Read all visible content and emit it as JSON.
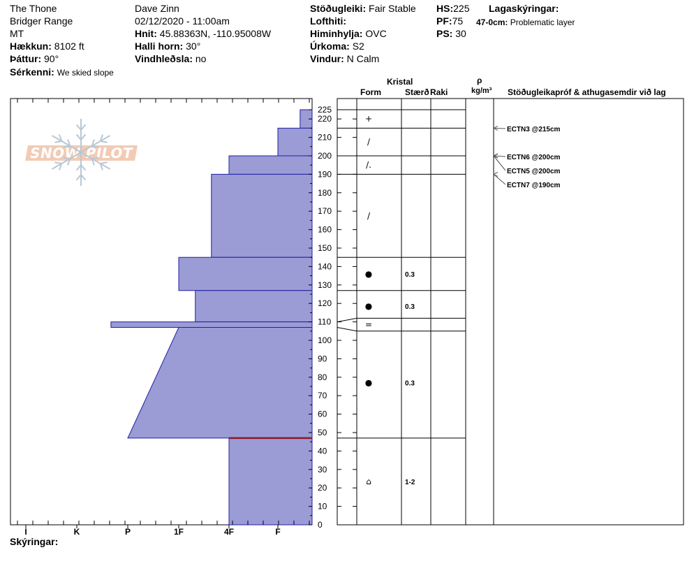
{
  "header": {
    "location": "The Thone",
    "range": "Bridger Range",
    "state": "MT",
    "elevation_label": "Hækkun:",
    "elevation": "8102 ft",
    "aspect_label": "Þáttur:",
    "aspect": "90°",
    "features_label": "Sérkenni:",
    "features": "We skied slope",
    "observer": "Dave Zinn",
    "datetime": "02/12/2020 - 11:00am",
    "coords_label": "Hnit:",
    "coords": "45.88363N, -110.95008W",
    "slope_label": "Halli horn:",
    "slope": "30°",
    "wind_loading_label": "Vindhleðsla:",
    "wind_loading": "no",
    "stability_label": "Stöðugleiki:",
    "stability": "Fair Stable",
    "air_temp_label": "Lofthiti:",
    "air_temp": "",
    "sky_label": "Himinhylja:",
    "sky": "OVC",
    "precip_label": "Úrkoma:",
    "precip": "S2",
    "wind_label": "Vindur:",
    "wind": "N Calm",
    "hs_label": "HS:",
    "hs": "225",
    "pf_label": "PF:",
    "pf": "75",
    "ps_label": "PS:",
    "ps": "30",
    "layer_notes_label": "Lagaskýringar:",
    "layer_note_range": "47-0cm:",
    "layer_note_text": "Problematic layer"
  },
  "logo_text": "SNOW PILOT",
  "legend_label": "Skýringar:",
  "columns": {
    "kristal": "Kristal",
    "form": "Form",
    "size": "Stærð",
    "moisture": "Raki",
    "rho": "ρ",
    "density_unit": "kg/m³",
    "tests": "Stöðugleikapróf & athugasemdir við lag"
  },
  "chart_data": {
    "type": "bar",
    "x_categories": [
      "I",
      "K",
      "P",
      "1F",
      "4F",
      "F"
    ],
    "y_ticks": [
      0,
      10,
      20,
      30,
      40,
      50,
      60,
      70,
      80,
      90,
      100,
      110,
      120,
      130,
      140,
      150,
      160,
      170,
      180,
      190,
      200,
      210,
      220,
      225
    ],
    "ylim": [
      0,
      225
    ],
    "layers": [
      {
        "top": 225,
        "bottom": 215,
        "hardness_top": 5.65,
        "hardness_bottom": 5.65,
        "form": "+",
        "size": ""
      },
      {
        "top": 215,
        "bottom": 200,
        "hardness_top": 5.0,
        "hardness_bottom": 5.0,
        "form": "/",
        "size": ""
      },
      {
        "top": 200,
        "bottom": 190,
        "hardness_top": 4.0,
        "hardness_bottom": 4.0,
        "form": "/.",
        "size": ""
      },
      {
        "top": 190,
        "bottom": 145,
        "hardness_top": 3.65,
        "hardness_bottom": 3.65,
        "form": "/",
        "size": ""
      },
      {
        "top": 145,
        "bottom": 127,
        "hardness_top": 3.0,
        "hardness_bottom": 3.0,
        "form": "●",
        "size": "0.3"
      },
      {
        "top": 127,
        "bottom": 110,
        "hardness_top": 3.33,
        "hardness_bottom": 3.33,
        "form": "●",
        "size": "0.3"
      },
      {
        "top": 110,
        "bottom": 107,
        "hardness_top": 1.67,
        "hardness_bottom": 1.67,
        "form": "=",
        "size": ""
      },
      {
        "top": 107,
        "bottom": 47,
        "hardness_top": 3.0,
        "hardness_bottom": 2.0,
        "form": "●",
        "size": "0.3"
      },
      {
        "top": 47,
        "bottom": 0,
        "hardness_top": 4.0,
        "hardness_bottom": 4.0,
        "form": "⌂",
        "size": "1-2"
      }
    ],
    "problem_layer_cm": 47,
    "tests": [
      {
        "label": "ECTN3 @215cm",
        "depth": 215
      },
      {
        "label": "ECTN6 @200cm",
        "depth": 200
      },
      {
        "label": "ECTN5 @200cm",
        "depth": 200
      },
      {
        "label": "ECTN7 @190cm",
        "depth": 190
      }
    ]
  }
}
